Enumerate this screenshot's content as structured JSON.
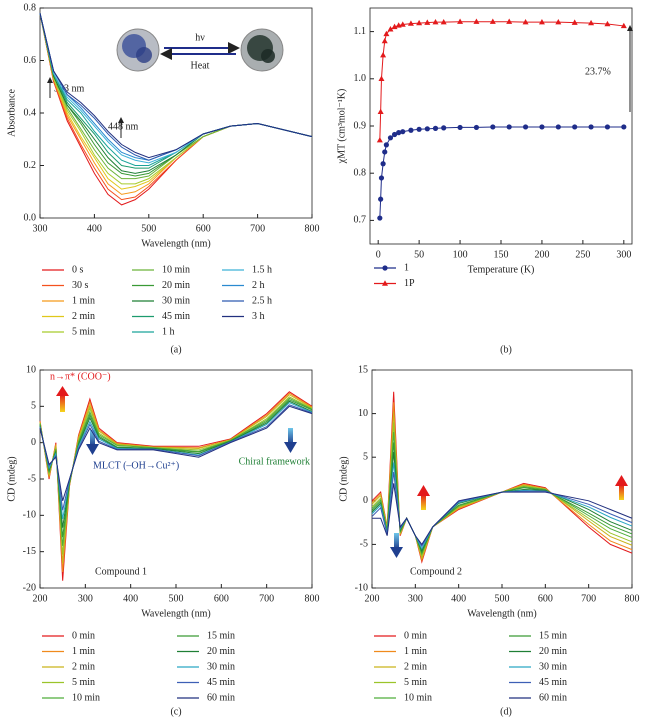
{
  "chart_data": [
    {
      "type": "line",
      "panel_label": "(a)",
      "xlabel": "Wavelength (nm)",
      "ylabel": "Absorbance",
      "annotations": [
        "333 nm",
        "448 nm",
        "hν",
        "Heat"
      ],
      "xlim": [
        300,
        800
      ],
      "xticks": [
        300,
        400,
        500,
        600,
        700,
        800
      ],
      "ylim": [
        0,
        0.8
      ],
      "yticks": [
        {
          "value": 0,
          "label": "0.0"
        },
        0.2,
        0.4,
        0.6,
        0.8
      ],
      "x": [
        300,
        325,
        350,
        375,
        400,
        425,
        450,
        475,
        500,
        550,
        600,
        650,
        700,
        800
      ],
      "series": [
        {
          "name": "0 s",
          "color": "#e31a1c",
          "values": [
            0.78,
            0.52,
            0.37,
            0.27,
            0.17,
            0.09,
            0.05,
            0.07,
            0.11,
            0.22,
            0.31,
            0.35,
            0.36,
            0.31
          ]
        },
        {
          "name": "30 s",
          "color": "#f4511e",
          "values": [
            0.78,
            0.52,
            0.38,
            0.28,
            0.19,
            0.11,
            0.07,
            0.08,
            0.12,
            0.22,
            0.31,
            0.35,
            0.36,
            0.31
          ]
        },
        {
          "name": "1 min",
          "color": "#f59a1b",
          "values": [
            0.78,
            0.53,
            0.39,
            0.3,
            0.21,
            0.13,
            0.09,
            0.1,
            0.13,
            0.23,
            0.31,
            0.35,
            0.36,
            0.31
          ]
        },
        {
          "name": "2 min",
          "color": "#e0c81a",
          "values": [
            0.78,
            0.53,
            0.4,
            0.31,
            0.23,
            0.15,
            0.11,
            0.12,
            0.14,
            0.23,
            0.31,
            0.35,
            0.36,
            0.31
          ]
        },
        {
          "name": "5 min",
          "color": "#a8cc2c",
          "values": [
            0.78,
            0.53,
            0.41,
            0.33,
            0.24,
            0.17,
            0.13,
            0.13,
            0.15,
            0.23,
            0.31,
            0.35,
            0.36,
            0.31
          ]
        },
        {
          "name": "10 min",
          "color": "#6cb33a",
          "values": [
            0.78,
            0.54,
            0.42,
            0.34,
            0.26,
            0.19,
            0.15,
            0.15,
            0.16,
            0.24,
            0.31,
            0.35,
            0.36,
            0.31
          ]
        },
        {
          "name": "20 min",
          "color": "#3a9a35",
          "values": [
            0.78,
            0.54,
            0.43,
            0.36,
            0.28,
            0.21,
            0.17,
            0.16,
            0.17,
            0.24,
            0.32,
            0.35,
            0.36,
            0.31
          ]
        },
        {
          "name": "30 min",
          "color": "#1f7f35",
          "values": [
            0.78,
            0.54,
            0.43,
            0.37,
            0.3,
            0.23,
            0.18,
            0.17,
            0.18,
            0.24,
            0.32,
            0.35,
            0.36,
            0.31
          ]
        },
        {
          "name": "45 min",
          "color": "#1c9b6e",
          "values": [
            0.78,
            0.55,
            0.44,
            0.38,
            0.32,
            0.25,
            0.2,
            0.19,
            0.19,
            0.25,
            0.32,
            0.35,
            0.36,
            0.31
          ]
        },
        {
          "name": "1 h",
          "color": "#1aa39a",
          "values": [
            0.78,
            0.55,
            0.45,
            0.4,
            0.33,
            0.27,
            0.22,
            0.2,
            0.2,
            0.25,
            0.32,
            0.35,
            0.36,
            0.31
          ]
        },
        {
          "name": "1.5 h",
          "color": "#3db2d8",
          "values": [
            0.78,
            0.55,
            0.46,
            0.41,
            0.35,
            0.29,
            0.24,
            0.22,
            0.21,
            0.25,
            0.32,
            0.35,
            0.36,
            0.31
          ]
        },
        {
          "name": "2 h",
          "color": "#2a8ad0",
          "values": [
            0.78,
            0.56,
            0.47,
            0.42,
            0.36,
            0.3,
            0.25,
            0.23,
            0.22,
            0.26,
            0.32,
            0.35,
            0.36,
            0.31
          ]
        },
        {
          "name": "2.5 h",
          "color": "#2f5bb0",
          "values": [
            0.78,
            0.56,
            0.47,
            0.43,
            0.38,
            0.32,
            0.27,
            0.24,
            0.22,
            0.26,
            0.32,
            0.35,
            0.36,
            0.31
          ]
        },
        {
          "name": "3 h",
          "color": "#22307f",
          "values": [
            0.78,
            0.56,
            0.48,
            0.44,
            0.39,
            0.33,
            0.28,
            0.25,
            0.23,
            0.26,
            0.32,
            0.35,
            0.36,
            0.31
          ]
        }
      ]
    },
    {
      "type": "line",
      "panel_label": "(b)",
      "xlabel": "Temperature (K)",
      "ylabel": "χMT (cm³mol⁻¹K)",
      "annotations": [
        "23.7%"
      ],
      "markers": true,
      "xlim": [
        -10,
        310
      ],
      "xticks": [
        0,
        50,
        100,
        150,
        200,
        250,
        300
      ],
      "ylim": [
        0.65,
        1.15
      ],
      "yticks": [
        0.7,
        0.8,
        0.9,
        {
          "value": 1,
          "label": "1.0"
        },
        1.1
      ],
      "x": [
        2,
        3,
        4,
        6,
        8,
        10,
        15,
        20,
        25,
        30,
        40,
        50,
        60,
        70,
        80,
        100,
        120,
        140,
        160,
        180,
        200,
        220,
        240,
        260,
        280,
        300
      ],
      "series": [
        {
          "name": "1",
          "color": "#1f2d8a",
          "marker": "circle",
          "values": [
            0.705,
            0.745,
            0.79,
            0.82,
            0.845,
            0.86,
            0.875,
            0.882,
            0.886,
            0.888,
            0.891,
            0.893,
            0.894,
            0.895,
            0.896,
            0.897,
            0.897,
            0.898,
            0.898,
            0.898,
            0.898,
            0.898,
            0.898,
            0.898,
            0.898,
            0.898
          ]
        },
        {
          "name": "1P",
          "color": "#e31a1c",
          "marker": "triangle",
          "values": [
            0.87,
            0.93,
            1.0,
            1.05,
            1.08,
            1.095,
            1.105,
            1.11,
            1.113,
            1.115,
            1.117,
            1.118,
            1.119,
            1.12,
            1.12,
            1.121,
            1.121,
            1.121,
            1.121,
            1.12,
            1.12,
            1.12,
            1.119,
            1.118,
            1.116,
            1.112
          ]
        }
      ]
    },
    {
      "type": "line",
      "panel_label": "(c)",
      "xlabel": "Wavelength (nm)",
      "ylabel": "CD (mdeg)",
      "annotations": [
        "n→π* (COO⁻)",
        "MLCT (–OH→Cu²⁺)",
        "Chiral framework",
        "Compound 1"
      ],
      "xlim": [
        200,
        800
      ],
      "xticks": [
        200,
        300,
        400,
        500,
        600,
        700,
        800
      ],
      "ylim": [
        -20,
        10
      ],
      "yticks": [
        -20,
        -15,
        -10,
        -5,
        0,
        5,
        10
      ],
      "x": [
        200,
        220,
        235,
        250,
        265,
        285,
        310,
        330,
        370,
        450,
        550,
        620,
        700,
        750,
        800
      ],
      "series": [
        {
          "name": "0 min",
          "color": "#e31a1c",
          "values": [
            3,
            -5,
            0,
            -19,
            -6,
            1,
            6,
            2,
            0,
            -0.5,
            -0.5,
            0.5,
            4,
            7,
            5
          ]
        },
        {
          "name": "1 min",
          "color": "#f08a1c",
          "values": [
            2.9,
            -4.8,
            -0.2,
            -17.8,
            -5.9,
            0.8,
            5.6,
            1.8,
            -0.1,
            -0.6,
            -0.7,
            0.4,
            3.8,
            6.8,
            4.9
          ]
        },
        {
          "name": "2 min",
          "color": "#c9b41a",
          "values": [
            2.8,
            -4.6,
            -0.4,
            -16.6,
            -5.8,
            0.6,
            5.1,
            1.6,
            -0.2,
            -0.6,
            -0.8,
            0.4,
            3.6,
            6.6,
            4.8
          ]
        },
        {
          "name": "5 min",
          "color": "#9bc42a",
          "values": [
            2.7,
            -4.3,
            -0.7,
            -15.4,
            -5.7,
            0.3,
            4.7,
            1.3,
            -0.3,
            -0.7,
            -1,
            0.3,
            3.3,
            6.3,
            4.7
          ]
        },
        {
          "name": "10 min",
          "color": "#4fae3a",
          "values": [
            2.6,
            -4.1,
            -0.9,
            -14.2,
            -5.6,
            0.1,
            4.2,
            1.1,
            -0.4,
            -0.7,
            -1.2,
            0.3,
            3.1,
            6.1,
            4.6
          ]
        },
        {
          "name": "15 min",
          "color": "#3a9a35",
          "values": [
            2.5,
            -3.9,
            -1.1,
            -13,
            -5.5,
            -0.1,
            3.8,
            0.9,
            -0.6,
            -0.8,
            -1.3,
            0.2,
            2.9,
            5.9,
            4.5
          ]
        },
        {
          "name": "20 min",
          "color": "#1f7f35",
          "values": [
            2.3,
            -3.7,
            -1.3,
            -11.7,
            -5.3,
            -0.3,
            3.4,
            0.7,
            -0.7,
            -0.8,
            -1.5,
            0.2,
            2.7,
            5.7,
            4.3
          ]
        },
        {
          "name": "30 min",
          "color": "#2aa6c4",
          "values": [
            2.2,
            -3.5,
            -1.5,
            -10.5,
            -5.2,
            -0.5,
            2.9,
            0.5,
            -0.8,
            -0.9,
            -1.7,
            0.1,
            2.5,
            5.5,
            4.2
          ]
        },
        {
          "name": "45 min",
          "color": "#3d5fb5",
          "values": [
            2.1,
            -3.2,
            -1.8,
            -9.3,
            -5.1,
            -0.8,
            2.5,
            0.2,
            -0.9,
            -0.9,
            -1.8,
            0.1,
            2.2,
            5.2,
            4.1
          ]
        },
        {
          "name": "60 min",
          "color": "#22307f",
          "values": [
            2,
            -3,
            -2,
            -8,
            -5,
            -1,
            2,
            0,
            -1,
            -1,
            -2,
            0,
            2,
            5,
            4
          ]
        }
      ]
    },
    {
      "type": "line",
      "panel_label": "(d)",
      "xlabel": "Wavelength (nm)",
      "ylabel": "CD (mdeg)",
      "annotations": [
        "Compound 2"
      ],
      "xlim": [
        200,
        800
      ],
      "xticks": [
        200,
        300,
        400,
        500,
        600,
        700,
        800
      ],
      "ylim": [
        -10,
        15
      ],
      "yticks": [
        -10,
        -5,
        0,
        5,
        10,
        15
      ],
      "x": [
        200,
        220,
        235,
        250,
        265,
        280,
        300,
        315,
        340,
        400,
        500,
        550,
        600,
        700,
        750,
        800
      ],
      "series": [
        {
          "name": "0 min",
          "color": "#e31a1c",
          "values": [
            0,
            1,
            -3,
            12.5,
            -4,
            -2,
            -4,
            -7,
            -3,
            -1,
            1,
            2,
            1.5,
            -3,
            -5,
            -6
          ]
        },
        {
          "name": "1 min",
          "color": "#f08a1c",
          "values": [
            -0.2,
            0.8,
            -3.1,
            11.3,
            -3.9,
            -2,
            -4,
            -6.8,
            -3,
            -0.9,
            1,
            1.9,
            1.4,
            -2.7,
            -4.6,
            -5.6
          ]
        },
        {
          "name": "2 min",
          "color": "#c9b41a",
          "values": [
            -0.4,
            0.6,
            -3.2,
            10.2,
            -3.8,
            -2,
            -4,
            -6.6,
            -3,
            -0.8,
            1,
            1.8,
            1.4,
            -2.3,
            -4.1,
            -5.1
          ]
        },
        {
          "name": "5 min",
          "color": "#9bc42a",
          "values": [
            -0.7,
            0.3,
            -3.3,
            9,
            -3.7,
            -2,
            -4,
            -6.3,
            -3,
            -0.7,
            1,
            1.7,
            1.3,
            -2,
            -3.7,
            -4.7
          ]
        },
        {
          "name": "10 min",
          "color": "#4fae3a",
          "values": [
            -0.9,
            0.1,
            -3.4,
            7.9,
            -3.6,
            -2,
            -4,
            -6.1,
            -3,
            -0.6,
            1,
            1.6,
            1.3,
            -1.7,
            -3.2,
            -4.2
          ]
        },
        {
          "name": "15 min",
          "color": "#3a9a35",
          "values": [
            -1.1,
            -0.1,
            -3.6,
            6.7,
            -3.5,
            -2,
            -4,
            -5.9,
            -3,
            -0.5,
            1,
            1.5,
            1.2,
            -1.4,
            -2.8,
            -3.8
          ]
        },
        {
          "name": "20 min",
          "color": "#1f7f35",
          "values": [
            -1.3,
            -0.3,
            -3.7,
            5.6,
            -3.3,
            -2,
            -4,
            -5.7,
            -3,
            -0.3,
            1,
            1.3,
            1.2,
            -1,
            -2.4,
            -3.4
          ]
        },
        {
          "name": "30 min",
          "color": "#2aa6c4",
          "values": [
            -1.5,
            -0.5,
            -3.8,
            4.4,
            -3.2,
            -2,
            -4,
            -5.5,
            -3,
            -0.2,
            1,
            1.2,
            1.1,
            -0.7,
            -1.9,
            -2.9
          ]
        },
        {
          "name": "45 min",
          "color": "#3d5fb5",
          "values": [
            -1.8,
            -0.8,
            -3.9,
            3.3,
            -3.1,
            -2,
            -4,
            -5.2,
            -3,
            -0.1,
            1,
            1.1,
            1.1,
            -0.4,
            -1.5,
            -2.5
          ]
        },
        {
          "name": "60 min",
          "color": "#22307f",
          "values": [
            -2,
            -2,
            -4,
            2,
            -3,
            -2,
            -4,
            -5,
            -3,
            0,
            1,
            1,
            1,
            0,
            -1,
            -2
          ]
        }
      ]
    }
  ]
}
